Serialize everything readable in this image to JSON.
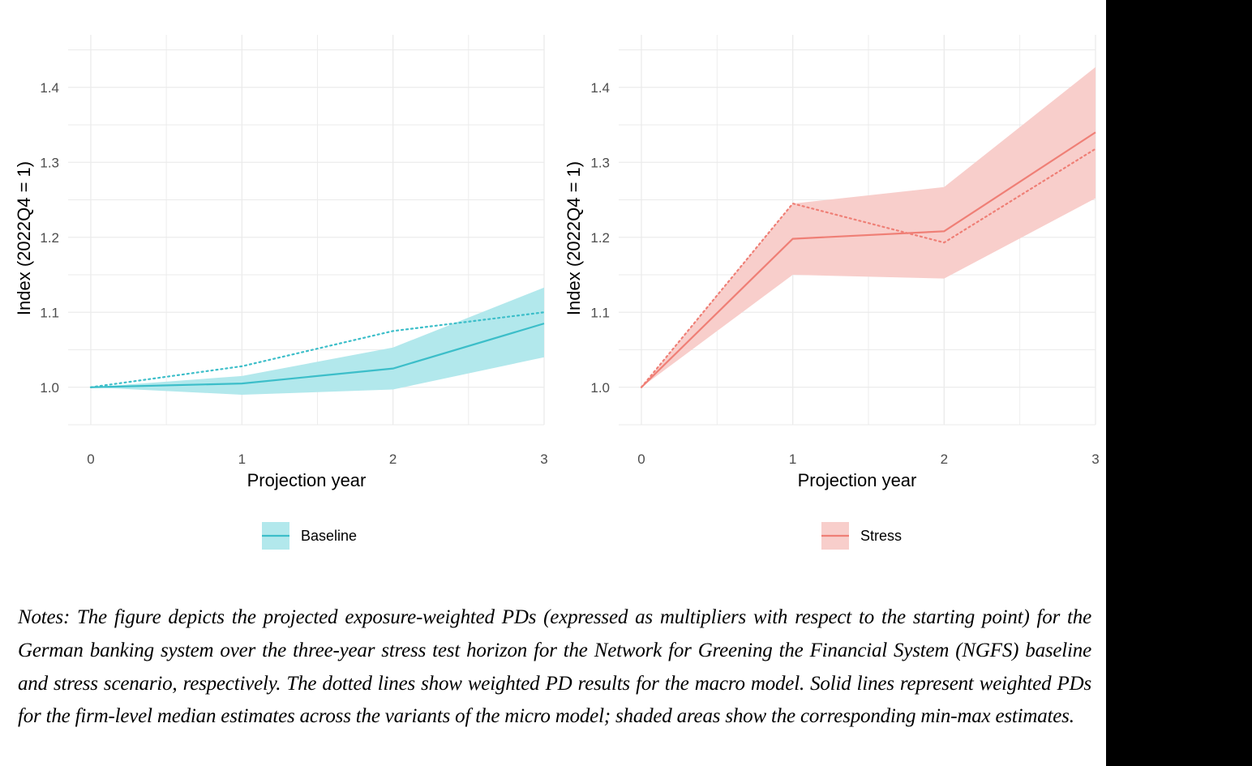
{
  "chart_data": [
    {
      "type": "line",
      "xlabel": "Projection year",
      "ylabel": "Index (2022Q4 = 1)",
      "x": [
        0,
        1,
        2,
        3
      ],
      "xticks": [
        "0",
        "1",
        "2",
        "3"
      ],
      "yticks": [
        "1.0",
        "1.1",
        "1.2",
        "1.3",
        "1.4"
      ],
      "xlim": [
        -0.15,
        3.0
      ],
      "ylim": [
        0.95,
        1.47
      ],
      "grid": true,
      "legend": "bottom",
      "legend_label": "Baseline",
      "color": "#3cbec9",
      "band_color": "#b2e8ec",
      "series": [
        {
          "name": "Baseline",
          "style": "solid",
          "values": [
            1.0,
            1.005,
            1.025,
            1.085
          ]
        },
        {
          "style": "dotted",
          "values": [
            1.0,
            1.028,
            1.075,
            1.1
          ]
        },
        {
          "style": "band",
          "lower": [
            1.0,
            0.99,
            0.997,
            1.04
          ],
          "upper": [
            1.0,
            1.015,
            1.053,
            1.133
          ]
        }
      ]
    },
    {
      "type": "line",
      "xlabel": "Projection year",
      "ylabel": "Index (2022Q4 = 1)",
      "x": [
        0,
        1,
        2,
        3
      ],
      "xticks": [
        "0",
        "1",
        "2",
        "3"
      ],
      "yticks": [
        "1.0",
        "1.1",
        "1.2",
        "1.3",
        "1.4"
      ],
      "xlim": [
        -0.15,
        3.0
      ],
      "ylim": [
        0.95,
        1.47
      ],
      "grid": true,
      "legend": "bottom",
      "legend_label": "Stress",
      "color": "#ef7f76",
      "band_color": "#f8cecb",
      "series": [
        {
          "name": "Stress",
          "style": "solid",
          "values": [
            1.0,
            1.198,
            1.208,
            1.34
          ]
        },
        {
          "style": "dotted",
          "values": [
            1.0,
            1.245,
            1.193,
            1.318
          ]
        },
        {
          "style": "band",
          "lower": [
            1.0,
            1.15,
            1.145,
            1.252
          ],
          "upper": [
            1.0,
            1.245,
            1.267,
            1.427
          ]
        }
      ]
    }
  ],
  "notes": "Notes: The figure depicts the projected exposure-weighted PDs (expressed as multipliers with respect to the starting point) for the German banking system over the three-year stress test horizon for the Network for Greening the Financial System (NGFS) baseline and stress scenario, respectively. The dotted lines show weighted PD results for the macro model. Solid lines represent weighted PDs for the firm-level median estimates across the variants of the micro model; shaded areas show the corresponding min-max estimates."
}
